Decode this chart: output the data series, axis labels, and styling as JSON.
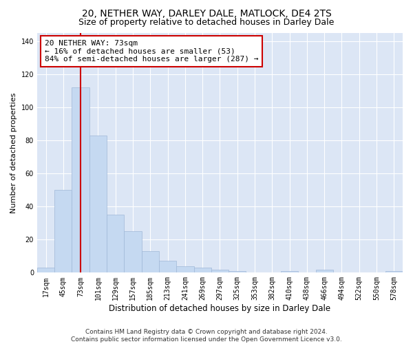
{
  "title": "20, NETHER WAY, DARLEY DALE, MATLOCK, DE4 2TS",
  "subtitle": "Size of property relative to detached houses in Darley Dale",
  "xlabel": "Distribution of detached houses by size in Darley Dale",
  "ylabel": "Number of detached properties",
  "bar_labels": [
    "17sqm",
    "45sqm",
    "73sqm",
    "101sqm",
    "129sqm",
    "157sqm",
    "185sqm",
    "213sqm",
    "241sqm",
    "269sqm",
    "297sqm",
    "325sqm",
    "353sqm",
    "382sqm",
    "410sqm",
    "438sqm",
    "466sqm",
    "494sqm",
    "522sqm",
    "550sqm",
    "578sqm"
  ],
  "bar_values": [
    3,
    50,
    112,
    83,
    35,
    25,
    13,
    7,
    4,
    3,
    2,
    1,
    0,
    0,
    1,
    0,
    2,
    0,
    0,
    0,
    1
  ],
  "bar_color": "#c5d9f1",
  "bar_edgecolor": "#a0b8d8",
  "vline_x_idx": 2,
  "vline_color": "#cc0000",
  "annotation_text": "20 NETHER WAY: 73sqm\n← 16% of detached houses are smaller (53)\n84% of semi-detached houses are larger (287) →",
  "annotation_box_color": "#ffffff",
  "annotation_box_edgecolor": "#cc0000",
  "ylim": [
    0,
    145
  ],
  "yticks": [
    0,
    20,
    40,
    60,
    80,
    100,
    120,
    140
  ],
  "background_color": "#dce6f5",
  "footnote": "Contains HM Land Registry data © Crown copyright and database right 2024.\nContains public sector information licensed under the Open Government Licence v3.0.",
  "title_fontsize": 10,
  "subtitle_fontsize": 9,
  "xlabel_fontsize": 8.5,
  "ylabel_fontsize": 8,
  "tick_fontsize": 7,
  "annotation_fontsize": 8,
  "footnote_fontsize": 6.5
}
